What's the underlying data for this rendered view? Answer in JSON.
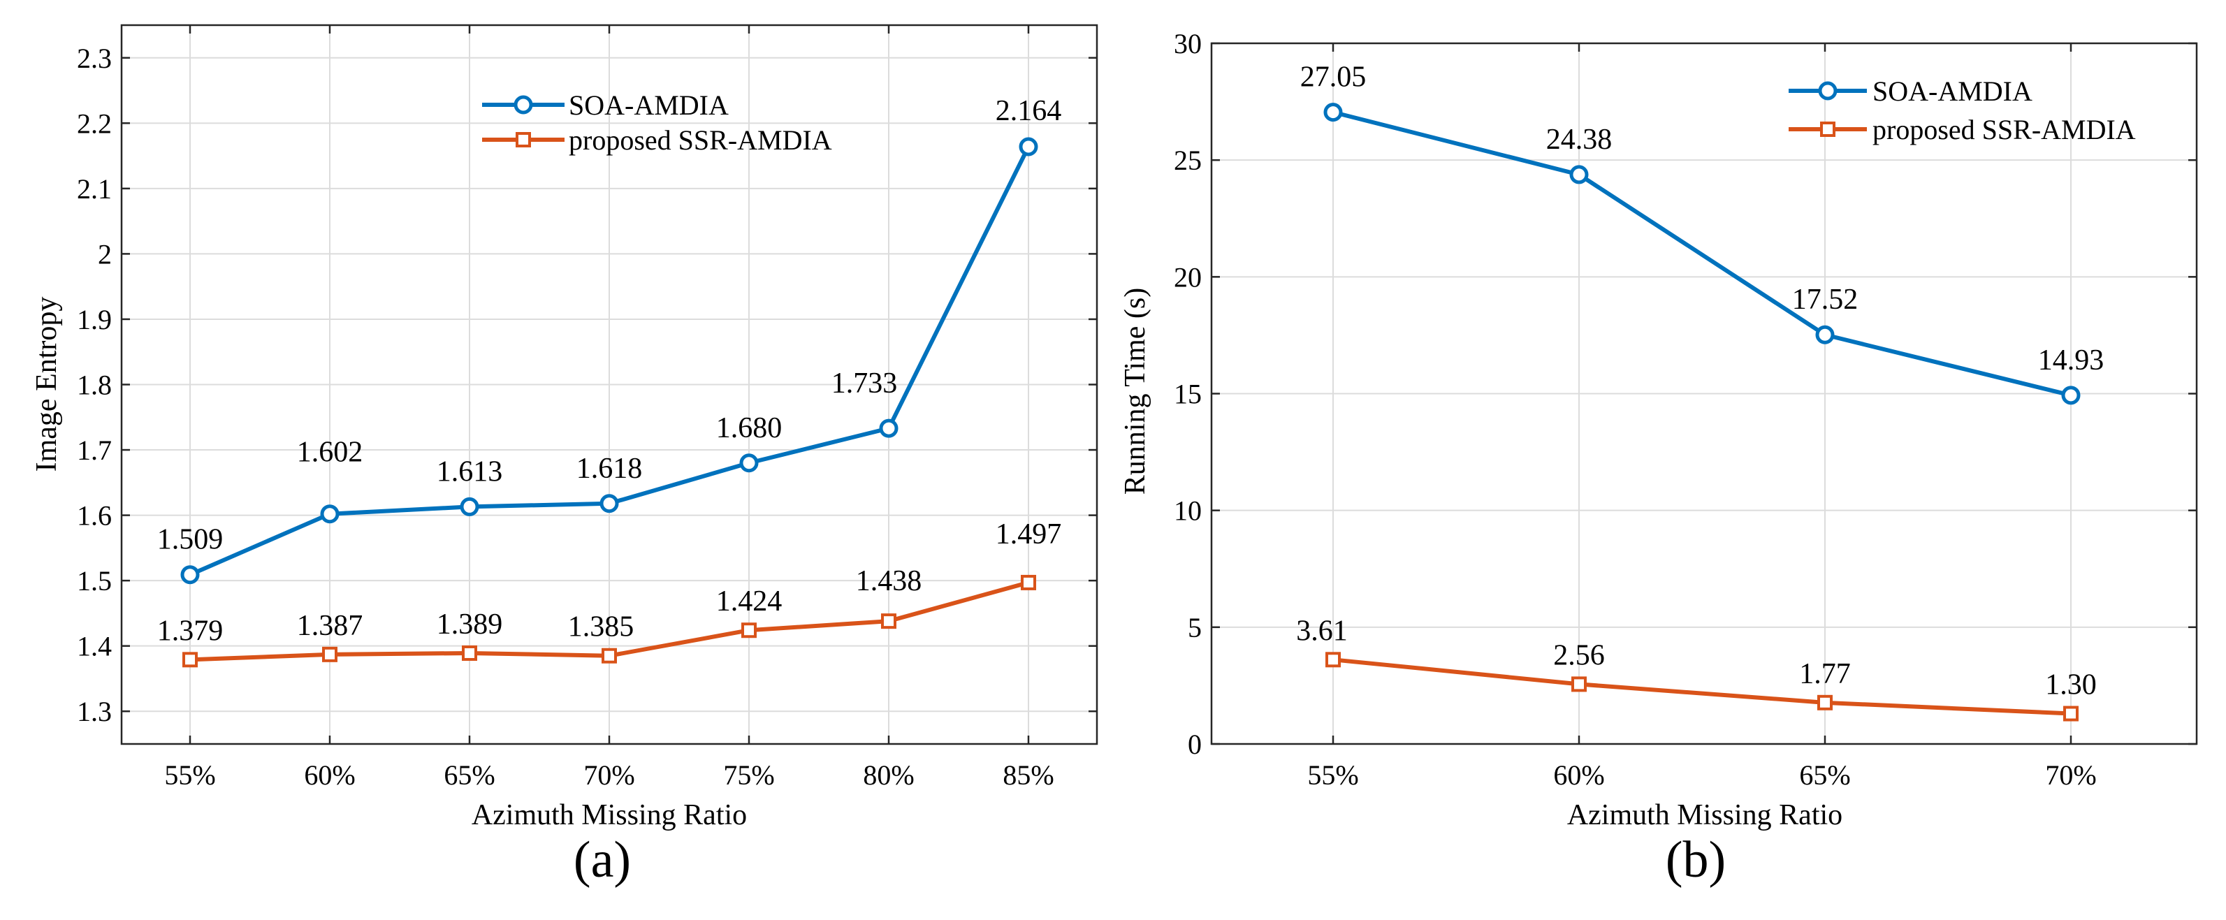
{
  "chart_data": [
    {
      "type": "line",
      "panel_label": "(a)",
      "xlabel": "Azimuth Missing Ratio",
      "ylabel": "Image Entropy",
      "categories": [
        "55%",
        "60%",
        "65%",
        "70%",
        "75%",
        "80%",
        "85%"
      ],
      "ylim": [
        1.25,
        2.35
      ],
      "yticks": [
        1.3,
        1.4,
        1.5,
        1.6,
        1.7,
        1.8,
        1.9,
        2,
        2.1,
        2.2,
        2.3
      ],
      "ytick_labels": [
        "1.3",
        "1.4",
        "1.5",
        "1.6",
        "1.7",
        "1.8",
        "1.9",
        "2",
        "2.1",
        "2.2",
        "2.3"
      ],
      "grid": true,
      "legend_position": "top-right",
      "series": [
        {
          "name": "SOA-AMDIA",
          "color": "#0072BD",
          "marker": "circle",
          "values": [
            1.509,
            1.602,
            1.613,
            1.618,
            1.68,
            1.733,
            2.164
          ],
          "labels": [
            "1.509",
            "1.602",
            "1.613",
            "1.618",
            "1.680",
            "1.733",
            "2.164"
          ]
        },
        {
          "name": "proposed SSR-AMDIA",
          "color": "#D95319",
          "marker": "square",
          "values": [
            1.379,
            1.387,
            1.389,
            1.385,
            1.424,
            1.438,
            1.497
          ],
          "labels": [
            "1.379",
            "1.387",
            "1.389",
            "1.385",
            "1.424",
            "1.438",
            "1.497"
          ]
        }
      ]
    },
    {
      "type": "line",
      "panel_label": "(b)",
      "xlabel": "Azimuth Missing Ratio",
      "ylabel": "Running Time (s)",
      "categories": [
        "55%",
        "60%",
        "65%",
        "70%"
      ],
      "ylim": [
        0,
        30
      ],
      "yticks": [
        0,
        5,
        10,
        15,
        20,
        25,
        30
      ],
      "ytick_labels": [
        "0",
        "5",
        "10",
        "15",
        "20",
        "25",
        "30"
      ],
      "grid": true,
      "legend_position": "top-right",
      "series": [
        {
          "name": "SOA-AMDIA",
          "color": "#0072BD",
          "marker": "circle",
          "values": [
            27.05,
            24.38,
            17.52,
            14.93
          ],
          "labels": [
            "27.05",
            "24.38",
            "17.52",
            "14.93"
          ]
        },
        {
          "name": "proposed SSR-AMDIA",
          "color": "#D95319",
          "marker": "square",
          "values": [
            3.61,
            2.56,
            1.77,
            1.3
          ],
          "labels": [
            "3.61",
            "2.56",
            "1.77",
            "1.30"
          ]
        }
      ]
    }
  ]
}
